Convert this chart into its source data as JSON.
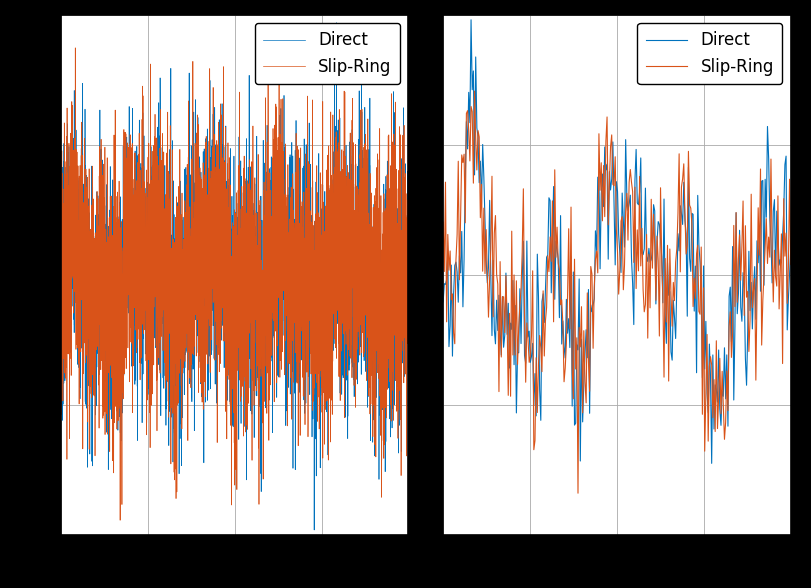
{
  "color_direct": "#0072BD",
  "color_slipring": "#D95319",
  "legend_labels": [
    "Direct",
    "Slip-Ring"
  ],
  "background_color": "white",
  "fig_bg_color": "black",
  "linewidth_full": 0.5,
  "linewidth_zoom": 0.8,
  "n_samples_full": 5000,
  "n_samples_zoom": 300,
  "seed": 7,
  "grid_color": "#aaaaaa",
  "grid_linewidth": 0.6,
  "font_size": 13,
  "legend_fontsize": 12
}
